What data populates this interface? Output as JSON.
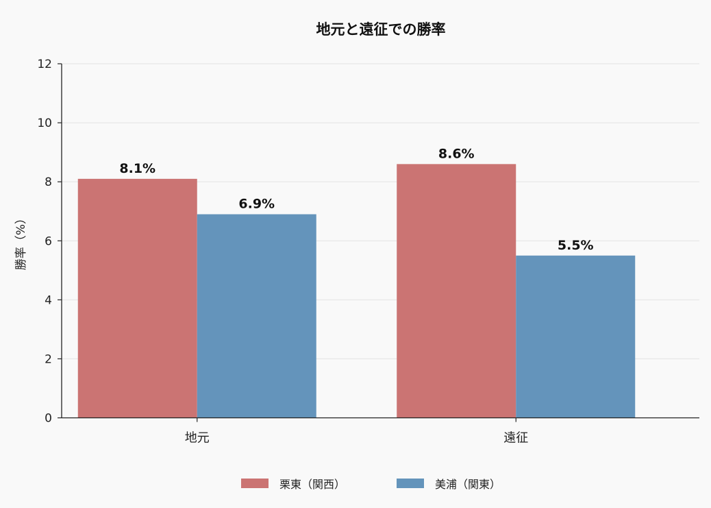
{
  "chart_data": {
    "type": "bar",
    "title": "地元と遠征での勝率",
    "xlabel": "",
    "ylabel": "勝率（%）",
    "categories": [
      "地元",
      "遠征"
    ],
    "series": [
      {
        "name": "栗東（関西）",
        "values": [
          8.1,
          8.6
        ],
        "color": "#cb7473"
      },
      {
        "name": "美浦（関東）",
        "values": [
          6.9,
          5.5
        ],
        "color": "#6494bb"
      }
    ],
    "ylim": [
      0,
      12
    ],
    "yticks": [
      0,
      2,
      4,
      6,
      8,
      10,
      12
    ],
    "value_suffix": "%",
    "grid": true,
    "legend_position": "bottom-center"
  }
}
